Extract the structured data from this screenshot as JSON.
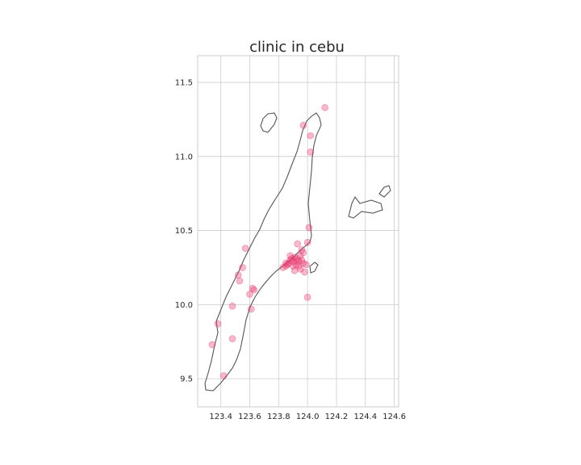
{
  "chart_data": {
    "type": "scatter",
    "title": "clinic in cebu",
    "xlabel": "",
    "ylabel": "",
    "xlim": [
      123.24,
      124.63
    ],
    "ylim": [
      9.31,
      11.68
    ],
    "xticks": [
      "123.4",
      "123.6",
      "123.8",
      "124.0",
      "124.2",
      "124.4",
      "124.6"
    ],
    "yticks": [
      "9.5",
      "10.0",
      "10.5",
      "11.0",
      "11.5"
    ],
    "grid": true,
    "point_color": "#e8336b",
    "outline_color": "#555555",
    "points": [
      [
        123.34,
        9.73
      ],
      [
        123.38,
        9.87
      ],
      [
        123.42,
        9.52
      ],
      [
        123.48,
        9.77
      ],
      [
        123.52,
        10.2
      ],
      [
        123.53,
        10.16
      ],
      [
        123.55,
        10.25
      ],
      [
        123.57,
        10.38
      ],
      [
        123.6,
        10.07
      ],
      [
        123.62,
        10.11
      ],
      [
        123.63,
        10.1
      ],
      [
        123.61,
        9.97
      ],
      [
        123.48,
        9.99
      ],
      [
        123.83,
        10.25
      ],
      [
        123.85,
        10.26
      ],
      [
        123.86,
        10.27
      ],
      [
        123.87,
        10.28
      ],
      [
        123.88,
        10.3
      ],
      [
        123.89,
        10.31
      ],
      [
        123.9,
        10.29
      ],
      [
        123.91,
        10.32
      ],
      [
        123.92,
        10.3
      ],
      [
        123.93,
        10.31
      ],
      [
        123.94,
        10.29
      ],
      [
        123.95,
        10.33
      ],
      [
        123.96,
        10.3
      ],
      [
        123.92,
        10.27
      ],
      [
        123.9,
        10.26
      ],
      [
        123.94,
        10.26
      ],
      [
        123.97,
        10.28
      ],
      [
        123.99,
        10.27
      ],
      [
        123.88,
        10.33
      ],
      [
        123.93,
        10.41
      ],
      [
        123.96,
        10.37
      ],
      [
        124.0,
        10.42
      ],
      [
        124.01,
        10.52
      ],
      [
        123.97,
        10.35
      ],
      [
        123.95,
        10.24
      ],
      [
        123.98,
        10.22
      ],
      [
        124.0,
        10.05
      ],
      [
        124.02,
        11.03
      ],
      [
        124.02,
        11.14
      ],
      [
        123.97,
        11.21
      ],
      [
        124.12,
        11.33
      ],
      [
        123.85,
        10.28
      ],
      [
        123.91,
        10.23
      ]
    ]
  }
}
